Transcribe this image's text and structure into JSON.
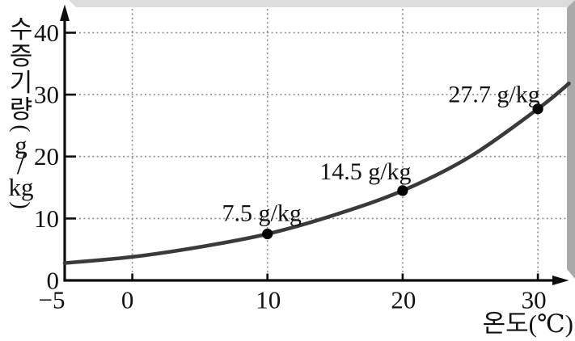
{
  "chart_data": {
    "type": "line",
    "title": "",
    "xlabel": "온도(℃)",
    "ylabel": "수증기량(g/kg)",
    "ylabel_vertical_chars": [
      "수",
      "증",
      "기",
      "량",
      "(",
      "g",
      "/",
      "kg",
      ")"
    ],
    "x_ticks": {
      "values": [
        -5,
        0,
        10,
        20,
        30
      ],
      "labels": [
        "−5",
        "0",
        "10",
        "20",
        "30"
      ]
    },
    "y_ticks": {
      "values": [
        0,
        10,
        20,
        30,
        40
      ],
      "labels": [
        "0",
        "10",
        "20",
        "30",
        "40"
      ]
    },
    "xlim": [
      -5,
      32.3
    ],
    "ylim": [
      0,
      44
    ],
    "grid": "dotted",
    "curve_points": [
      [
        -5,
        2.8
      ],
      [
        0,
        3.8
      ],
      [
        5,
        5.4
      ],
      [
        10,
        7.5
      ],
      [
        15,
        10.6
      ],
      [
        20,
        14.5
      ],
      [
        25,
        20.0
      ],
      [
        30,
        27.7
      ],
      [
        32.3,
        31.8
      ]
    ],
    "annotated_points": [
      {
        "x": 10,
        "y": 7.5,
        "label": "7.5 g/kg"
      },
      {
        "x": 20,
        "y": 14.5,
        "label": "14.5 g/kg"
      },
      {
        "x": 30,
        "y": 27.7,
        "label": "27.7 g/kg"
      }
    ],
    "colors": {
      "background": "#ffffff",
      "curve": "#3a3a3a",
      "point": "#000000",
      "grid": "#8c8c8c",
      "axis": "#0d0d0d",
      "text": "#111111",
      "border_top": "#dcdcdc",
      "border_right": "#a9a9a9"
    }
  }
}
